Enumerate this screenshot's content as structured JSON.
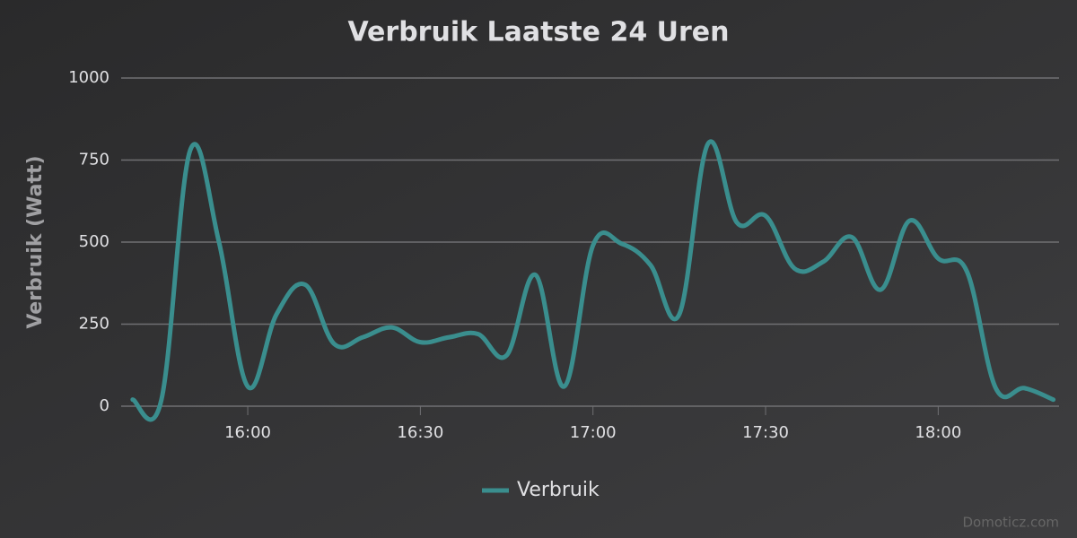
{
  "chart_data": {
    "type": "line",
    "title": "Verbruik Laatste 24 Uren",
    "y_label": "Verbruik (Watt)",
    "x": [
      "15:40",
      "15:45",
      "15:50",
      "15:55",
      "16:00",
      "16:05",
      "16:10",
      "16:15",
      "16:20",
      "16:25",
      "16:30",
      "16:35",
      "16:40",
      "16:45",
      "16:50",
      "16:55",
      "17:00",
      "17:05",
      "17:10",
      "17:15",
      "17:20",
      "17:25",
      "17:30",
      "17:35",
      "17:40",
      "17:45",
      "17:50",
      "17:55",
      "18:00",
      "18:05",
      "18:10",
      "18:15",
      "18:20"
    ],
    "series": [
      {
        "name": "Verbruik",
        "color": "#3a8e8e",
        "values": [
          20,
          20,
          780,
          500,
          60,
          280,
          370,
          190,
          210,
          240,
          195,
          210,
          220,
          155,
          400,
          60,
          490,
          495,
          430,
          280,
          800,
          560,
          580,
          420,
          440,
          515,
          355,
          565,
          450,
          410,
          55,
          55,
          20
        ]
      }
    ],
    "xlim": [
      "15:38",
      "18:21"
    ],
    "xticks": [
      "16:00",
      "16:30",
      "17:00",
      "17:30",
      "18:00"
    ],
    "ylim": [
      0,
      1000
    ],
    "yticks": [
      0,
      250,
      500,
      750,
      1000
    ],
    "grid": true,
    "legend": "bottom",
    "credits": "Domoticz.com"
  }
}
